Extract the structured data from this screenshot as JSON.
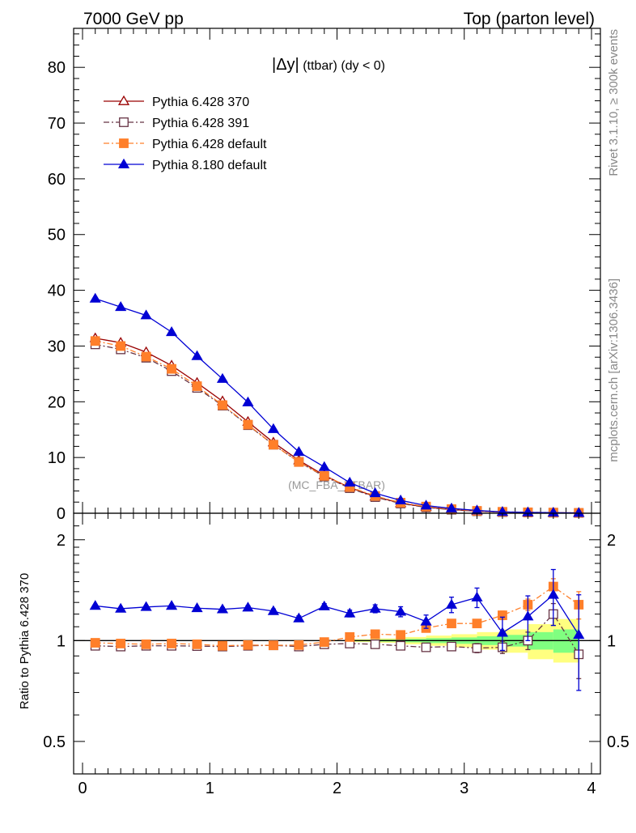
{
  "header": {
    "left": "7000 GeV pp",
    "right": "Top (parton level)"
  },
  "side_labels": {
    "rivet": "Rivet 3.1.10, ≥ 300k events",
    "mcplots": "mcplots.cern.ch [arXiv:1306.3436]"
  },
  "plot": {
    "title_main": "|Δy|",
    "title_sub": " (ttbar) (dy < 0)",
    "watermark": "(MC_FBA_TTBAR)"
  },
  "ratio": {
    "ylabel": "Ratio to Pythia 6.428 370"
  },
  "colors": {
    "s370": "#990000",
    "s391": "#663344",
    "sdefault": "#ff7f2a",
    "s8180": "#0000d4",
    "band_green": "#80ff80",
    "band_yellow": "#ffff80"
  },
  "chart_data": [
    {
      "type": "line",
      "x": [
        0.1,
        0.3,
        0.5,
        0.7,
        0.9,
        1.1,
        1.3,
        1.5,
        1.7,
        1.9,
        2.1,
        2.3,
        2.5,
        2.7,
        2.9,
        3.1,
        3.3,
        3.5,
        3.7,
        3.9
      ],
      "xlim": [
        -0.07,
        4.07
      ],
      "ylim": [
        0,
        87
      ],
      "yticks": [
        0,
        10,
        20,
        30,
        40,
        50,
        60,
        70,
        80
      ],
      "legend_position": "top-left",
      "series": [
        {
          "name": "Pythia 6.428 370",
          "marker": "triangle-open",
          "dash": "solid",
          "values": [
            31.4,
            30.6,
            28.9,
            26.5,
            23.4,
            20.1,
            16.4,
            12.7,
            9.5,
            6.8,
            4.6,
            3.0,
            1.8,
            1.1,
            0.65,
            0.38,
            0.22,
            0.13,
            0.08,
            0.05
          ]
        },
        {
          "name": "Pythia 6.428 391",
          "marker": "square-open",
          "dash": "dashdot",
          "values": [
            30.3,
            29.4,
            27.9,
            25.5,
            22.5,
            19.3,
            15.8,
            12.3,
            9.2,
            6.6,
            4.5,
            2.9,
            1.75,
            1.05,
            0.63,
            0.36,
            0.21,
            0.13,
            0.1,
            0.045
          ]
        },
        {
          "name": "Pythia 6.428 default",
          "marker": "square-filled",
          "dash": "dashdot",
          "values": [
            30.9,
            30.0,
            28.1,
            25.9,
            22.8,
            19.4,
            15.9,
            12.3,
            9.2,
            6.7,
            4.7,
            3.1,
            1.9,
            1.2,
            0.74,
            0.43,
            0.26,
            0.17,
            0.12,
            0.066
          ]
        },
        {
          "name": "Pythia 8.180 default",
          "marker": "triangle-filled",
          "dash": "solid",
          "values": [
            38.5,
            37.0,
            35.5,
            32.5,
            28.2,
            24.1,
            19.9,
            15.1,
            11.0,
            8.3,
            5.5,
            3.6,
            2.3,
            1.38,
            0.86,
            0.51,
            0.24,
            0.16,
            0.11,
            0.052
          ]
        }
      ]
    },
    {
      "type": "line",
      "x": [
        0.1,
        0.3,
        0.5,
        0.7,
        0.9,
        1.1,
        1.3,
        1.5,
        1.7,
        1.9,
        2.1,
        2.3,
        2.5,
        2.7,
        2.9,
        3.1,
        3.3,
        3.5,
        3.7,
        3.9
      ],
      "xlim": [
        -0.07,
        4.07
      ],
      "xticks": [
        0,
        1,
        2,
        3,
        4
      ],
      "ylim": [
        0.4,
        2.4
      ],
      "yscale": "log",
      "yticks": [
        0.5,
        1,
        2
      ],
      "xtick_labels": [
        "0",
        "1",
        "2",
        "3",
        "4"
      ],
      "ytick_labels": [
        "0.5",
        "1",
        "2"
      ],
      "reference_line": 1,
      "series": [
        {
          "name": "Pythia 6.428 391",
          "marker": "square-open",
          "dash": "dashdot",
          "values": [
            0.965,
            0.96,
            0.965,
            0.965,
            0.963,
            0.96,
            0.965,
            0.968,
            0.96,
            0.975,
            0.98,
            0.975,
            0.965,
            0.955,
            0.96,
            0.95,
            0.955,
            1.0,
            1.2,
            0.91
          ],
          "errors": [
            0.005,
            0.005,
            0.005,
            0.005,
            0.006,
            0.006,
            0.007,
            0.008,
            0.009,
            0.01,
            0.012,
            0.014,
            0.017,
            0.02,
            0.025,
            0.03,
            0.04,
            0.06,
            0.09,
            0.14
          ]
        },
        {
          "name": "Pythia 6.428 default",
          "marker": "square-filled",
          "dash": "dashdot",
          "values": [
            0.985,
            0.98,
            0.975,
            0.98,
            0.975,
            0.965,
            0.97,
            0.968,
            0.97,
            0.99,
            1.025,
            1.045,
            1.04,
            1.09,
            1.125,
            1.125,
            1.19,
            1.28,
            1.45,
            1.28
          ],
          "errors": [
            0.004,
            0.004,
            0.004,
            0.004,
            0.005,
            0.005,
            0.005,
            0.006,
            0.007,
            0.008,
            0.009,
            0.011,
            0.013,
            0.016,
            0.02,
            0.025,
            0.035,
            0.05,
            0.08,
            0.12
          ]
        },
        {
          "name": "Pythia 8.180 default",
          "marker": "triangle-filled",
          "dash": "solid",
          "values": [
            1.27,
            1.245,
            1.26,
            1.27,
            1.25,
            1.24,
            1.255,
            1.225,
            1.165,
            1.265,
            1.205,
            1.245,
            1.22,
            1.14,
            1.28,
            1.345,
            1.055,
            1.18,
            1.37,
            1.04
          ],
          "errors": [
            0.01,
            0.01,
            0.01,
            0.012,
            0.012,
            0.014,
            0.016,
            0.018,
            0.02,
            0.024,
            0.028,
            0.034,
            0.042,
            0.052,
            0.068,
            0.09,
            0.12,
            0.18,
            0.26,
            0.33
          ]
        }
      ],
      "bands": [
        {
          "color": "yellow",
          "x0": [
            2.2,
            2.4,
            2.6,
            2.8,
            3.0,
            3.2,
            3.4,
            3.6,
            3.8
          ],
          "lower": [
            0.99,
            0.985,
            0.975,
            0.965,
            0.955,
            0.94,
            0.92,
            0.88,
            0.86
          ],
          "upper": [
            1.01,
            1.015,
            1.025,
            1.035,
            1.045,
            1.06,
            1.08,
            1.12,
            1.16
          ]
        },
        {
          "color": "green",
          "x0": [
            2.2,
            2.4,
            2.6,
            2.8,
            3.0,
            3.2,
            3.4,
            3.6,
            3.8
          ],
          "lower": [
            0.995,
            0.993,
            0.988,
            0.983,
            0.978,
            0.97,
            0.96,
            0.94,
            0.92
          ],
          "upper": [
            1.005,
            1.007,
            1.012,
            1.017,
            1.022,
            1.03,
            1.04,
            1.06,
            1.08
          ]
        }
      ]
    }
  ]
}
